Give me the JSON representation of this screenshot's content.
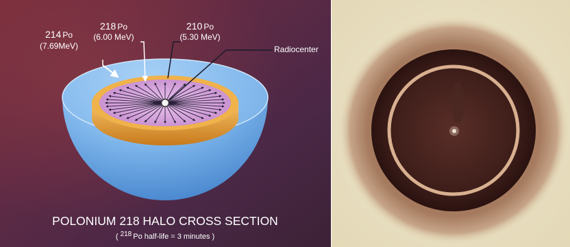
{
  "diagram": {
    "labels": {
      "po214": {
        "mass": "214",
        "symbol": "Po",
        "energy": "(7.69MeV)"
      },
      "po218": {
        "mass": "218",
        "symbol": "Po",
        "energy": "(6.00 MeV)"
      },
      "po210": {
        "mass": "210",
        "symbol": "Po",
        "energy": "(5.30 MeV)"
      },
      "radiocenter": "Radiocenter"
    },
    "title": "POLONIUM 218 HALO CROSS SECTION",
    "subtitle": {
      "open": "( ",
      "mass": "218",
      "rest": "Po half-life = 3 minutes )"
    },
    "colors": {
      "background": "#6a3040",
      "hemisphere": "#7fb8ec",
      "ring_orange": "#e8a030",
      "disc_pink": "#d7a0dc"
    }
  },
  "photo": {
    "description_colors": {
      "halo_outer": "#9a6a50",
      "halo_dark": "#3a1c18",
      "background": "#e8e0c4"
    }
  }
}
